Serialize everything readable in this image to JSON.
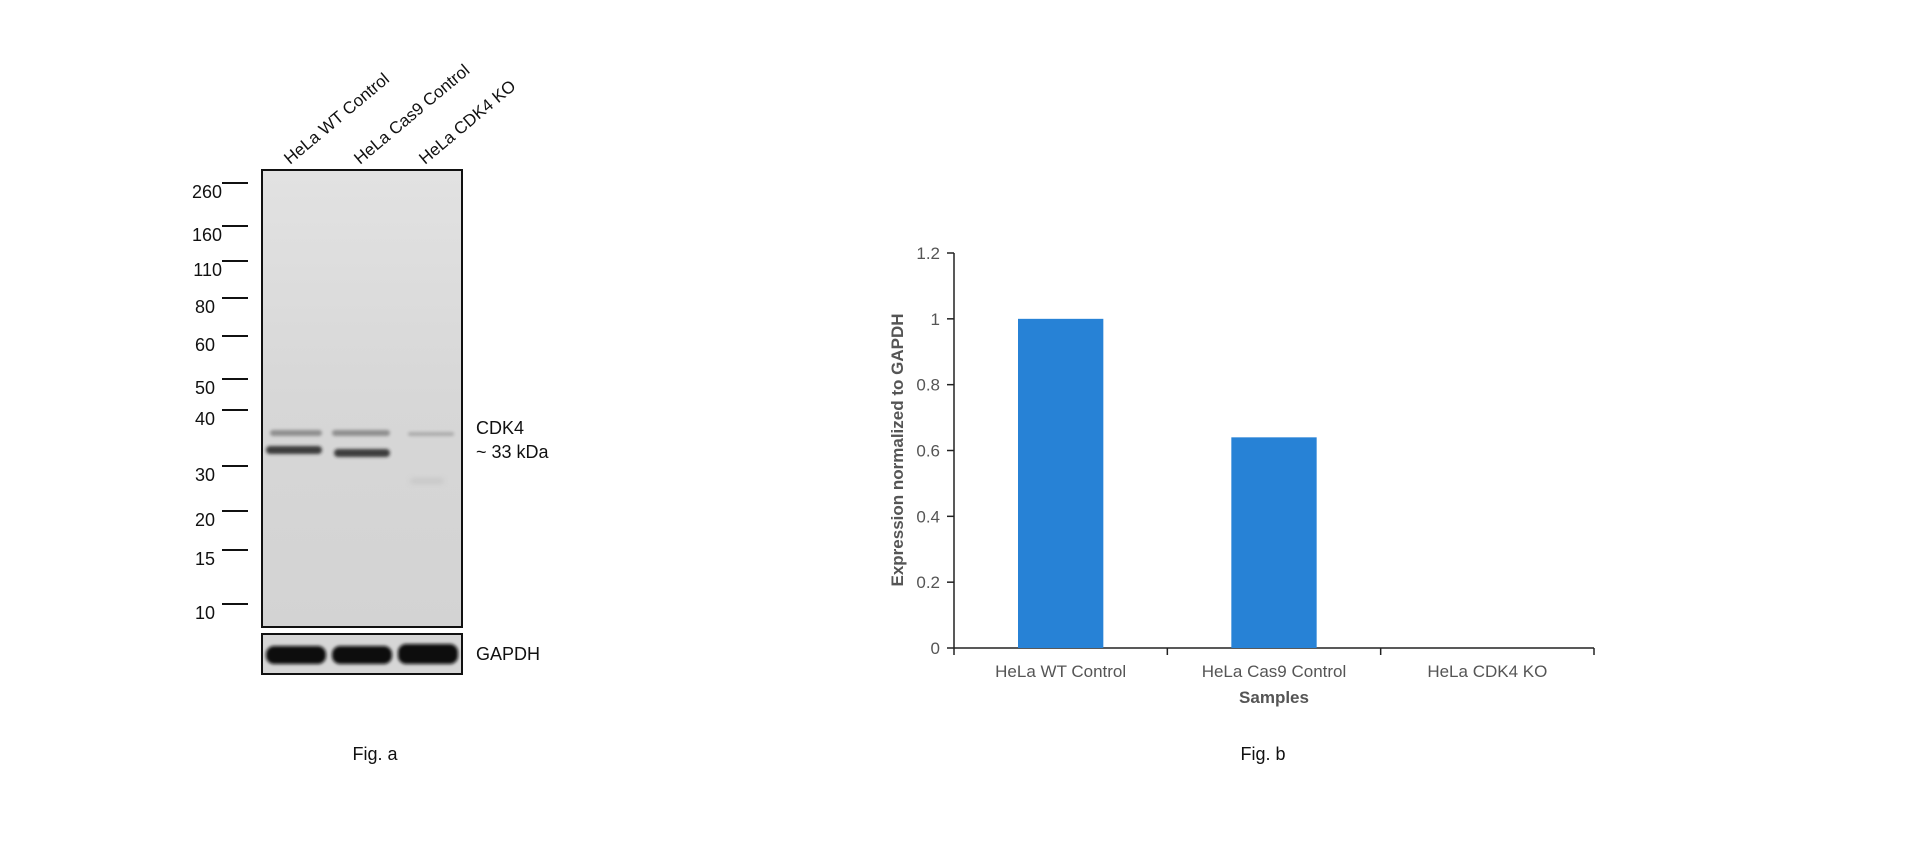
{
  "fig_a": {
    "lanes": [
      "HeLa WT Control",
      "HeLa Cas9 Control",
      "HeLa CDK4 KO"
    ],
    "markers": [
      "260",
      "160",
      "110",
      "80",
      "60",
      "50",
      "40",
      "30",
      "20",
      "15",
      "10"
    ],
    "band_label_name": "CDK4",
    "band_label_size": "~ 33 kDa",
    "loading_control_label": "GAPDH",
    "caption": "Fig. a"
  },
  "fig_b": {
    "caption": "Fig. b",
    "bar_color": "#2782d6"
  },
  "chart_data": {
    "type": "bar",
    "categories": [
      "HeLa WT Control",
      "HeLa Cas9 Control",
      "HeLa CDK4 KO"
    ],
    "values": [
      1.0,
      0.64,
      0.0
    ],
    "title": "",
    "xlabel": "Samples",
    "ylabel": "Expression normalized to GAPDH",
    "ylim": [
      0,
      1.2
    ],
    "yticks": [
      "0",
      "0.2",
      "0.4",
      "0.6",
      "0.8",
      "1",
      "1.2"
    ],
    "grid": false,
    "legend": "none"
  }
}
